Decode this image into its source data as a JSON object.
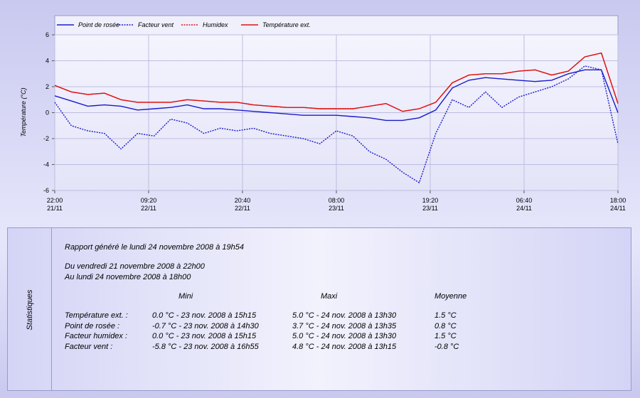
{
  "chart_data": {
    "type": "line",
    "y_label": "Température (°C)",
    "x": [
      0,
      120,
      240,
      360,
      480,
      600,
      720,
      840,
      960,
      1080,
      1200,
      1320,
      1440,
      1560,
      1680,
      1800,
      1920,
      2040,
      2160,
      2280,
      2400,
      2520,
      2640,
      2760,
      2880,
      3000,
      3120,
      3240,
      3360,
      3480,
      3600,
      3720,
      3840,
      3960,
      4080
    ],
    "xlim": [
      0,
      4080
    ],
    "xticks": [
      {
        "value": 0,
        "label": "22:00\n21/11"
      },
      {
        "value": 680,
        "label": "09:20\n22/11"
      },
      {
        "value": 1360,
        "label": "20:40\n22/11"
      },
      {
        "value": 2040,
        "label": "08:00\n23/11"
      },
      {
        "value": 2720,
        "label": "19:20\n23/11"
      },
      {
        "value": 3400,
        "label": "06:40\n24/11"
      },
      {
        "value": 4080,
        "label": "18:00\n24/11"
      }
    ],
    "ylim": [
      -6,
      6
    ],
    "yticks": [
      -6,
      -4,
      -2,
      0,
      2,
      4,
      6
    ],
    "grid": true,
    "legend": "top",
    "series": [
      {
        "name": "Point de rosée",
        "color": "#1a1acc",
        "style": "solid",
        "values": [
          1.3,
          0.9,
          0.5,
          0.6,
          0.5,
          0.2,
          0.3,
          0.4,
          0.6,
          0.3,
          0.3,
          0.2,
          0.1,
          0.0,
          -0.1,
          -0.2,
          -0.2,
          -0.2,
          -0.3,
          -0.4,
          -0.6,
          -0.6,
          -0.4,
          0.2,
          1.9,
          2.5,
          2.7,
          2.6,
          2.5,
          2.4,
          2.5,
          3.0,
          3.3,
          3.3,
          0.0
        ]
      },
      {
        "name": "Facteur vent",
        "color": "#1a1acc",
        "style": "dotted",
        "values": [
          0.8,
          -1.0,
          -1.4,
          -1.6,
          -2.8,
          -1.6,
          -1.8,
          -0.5,
          -0.8,
          -1.6,
          -1.2,
          -1.4,
          -1.2,
          -1.6,
          -1.8,
          -2.0,
          -2.4,
          -1.4,
          -1.8,
          -3.0,
          -3.6,
          -4.6,
          -5.4,
          -1.6,
          1.0,
          0.4,
          1.6,
          0.4,
          1.2,
          1.6,
          2.0,
          2.6,
          3.6,
          3.3,
          -2.4
        ]
      },
      {
        "name": "Humidex",
        "color": "#e01010",
        "style": "dotted",
        "values": [
          2.1,
          1.6,
          1.4,
          1.5,
          1.0,
          0.8,
          0.8,
          0.8,
          1.0,
          0.9,
          0.8,
          0.8,
          0.6,
          0.5,
          0.4,
          0.4,
          0.3,
          0.3,
          0.3,
          0.5,
          0.7,
          0.1,
          0.3,
          0.8,
          2.3,
          2.9,
          3.0,
          3.0,
          3.2,
          3.3,
          2.9,
          3.2,
          4.3,
          4.6,
          0.7
        ]
      },
      {
        "name": "Température ext.",
        "color": "#e01010",
        "style": "solid",
        "values": [
          2.1,
          1.6,
          1.4,
          1.5,
          1.0,
          0.8,
          0.8,
          0.8,
          1.0,
          0.9,
          0.8,
          0.8,
          0.6,
          0.5,
          0.4,
          0.4,
          0.3,
          0.3,
          0.3,
          0.5,
          0.7,
          0.1,
          0.3,
          0.8,
          2.3,
          2.9,
          3.0,
          3.0,
          3.2,
          3.3,
          2.9,
          3.2,
          4.3,
          4.6,
          0.7
        ]
      }
    ]
  },
  "stats": {
    "side_label": "Statistiques",
    "report": "Rapport généré le lundi 24 novembre 2008 à 19h54",
    "period_from": "Du vendredi 21 novembre 2008 à 22h00",
    "period_to": "Au lundi 24 novembre 2008 à 18h00",
    "headers": [
      "Mini",
      "Maxi",
      "Moyenne"
    ],
    "rows": [
      [
        "Température ext. :",
        "0.0 °C - 23 nov. 2008 à 15h15",
        "5.0 °C - 24 nov. 2008 à 13h30",
        "1.5 °C"
      ],
      [
        "Point de rosée :",
        "-0.7 °C - 23 nov. 2008 à 14h30",
        "3.7 °C - 24 nov. 2008 à 13h35",
        "0.8 °C"
      ],
      [
        "Facteur humidex :",
        "0.0 °C - 23 nov. 2008 à 15h15",
        "5.0 °C - 24 nov. 2008 à 13h30",
        "1.5 °C"
      ],
      [
        "Facteur vent :",
        "-5.8 °C - 23 nov. 2008 à 16h55",
        "4.8 °C - 24 nov. 2008 à 13h15",
        "-0.8 °C"
      ]
    ]
  }
}
